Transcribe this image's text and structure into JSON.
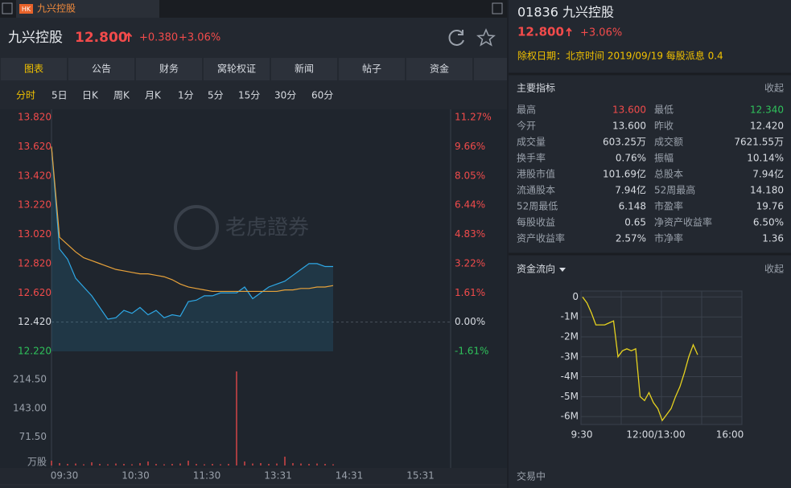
{
  "tab": {
    "badge": "HK",
    "title": "九兴控股"
  },
  "quote": {
    "name": "九兴控股",
    "price": "12.800",
    "change": "+0.380",
    "change_pct": "+3.06%"
  },
  "nav_tabs": [
    "图表",
    "公告",
    "财务",
    "窝轮权证",
    "新闻",
    "帖子",
    "资金"
  ],
  "periods": [
    "分时",
    "5日",
    "日K",
    "周K",
    "月K",
    "1分",
    "5分",
    "15分",
    "30分",
    "60分"
  ],
  "watermark": "老虎證券",
  "chart_data": [
    {
      "type": "line",
      "x_axis_labels": [
        "09:30",
        "10:30",
        "11:30",
        "13:31",
        "14:31",
        "15:31"
      ],
      "ylim": [
        12.22,
        13.82
      ],
      "yticks": [
        {
          "value": 13.82,
          "label": "13.820"
        },
        {
          "value": 13.62,
          "label": "13.620"
        },
        {
          "value": 13.42,
          "label": "13.420"
        },
        {
          "value": 13.22,
          "label": "13.220"
        },
        {
          "value": 13.02,
          "label": "13.020"
        },
        {
          "value": 12.82,
          "label": "12.820"
        },
        {
          "value": 12.62,
          "label": "12.620"
        },
        {
          "value": 12.42,
          "label": "12.420"
        },
        {
          "value": 12.22,
          "label": "12.220"
        }
      ],
      "y2lim": [
        -1.61,
        11.27
      ],
      "y2ticks": [
        {
          "value": 11.27,
          "label": "11.27%"
        },
        {
          "value": 9.66,
          "label": "9.66%"
        },
        {
          "value": 8.05,
          "label": "8.05%"
        },
        {
          "value": 6.44,
          "label": "6.44%"
        },
        {
          "value": 4.83,
          "label": "4.83%"
        },
        {
          "value": 3.22,
          "label": "3.22%"
        },
        {
          "value": 1.61,
          "label": "1.61%"
        },
        {
          "value": 0,
          "label": "0.00%"
        },
        {
          "value": -1.61,
          "label": "-1.61%"
        }
      ],
      "series": [
        {
          "color": "#2ea8e6",
          "values": [
            13.62,
            12.92,
            12.85,
            12.72,
            12.66,
            12.6,
            12.52,
            12.44,
            12.45,
            12.5,
            12.48,
            12.52,
            12.47,
            12.5,
            12.45,
            12.47,
            12.46,
            12.56,
            12.57,
            12.6,
            12.6,
            12.62,
            12.62,
            12.62,
            12.66,
            12.58,
            12.62,
            12.66,
            12.68,
            12.7,
            12.74,
            12.78,
            12.82,
            12.82,
            12.8,
            12.8
          ]
        },
        {
          "color": "#e8a23a",
          "values": [
            13.62,
            13.0,
            12.95,
            12.9,
            12.86,
            12.84,
            12.82,
            12.8,
            12.78,
            12.77,
            12.76,
            12.75,
            12.75,
            12.74,
            12.73,
            12.71,
            12.68,
            12.66,
            12.65,
            12.64,
            12.63,
            12.63,
            12.63,
            12.63,
            12.63,
            12.63,
            12.63,
            12.63,
            12.63,
            12.64,
            12.64,
            12.65,
            12.65,
            12.66,
            12.66,
            12.67
          ]
        }
      ]
    },
    {
      "type": "bar",
      "color": "#e04848",
      "unit_label": "万股",
      "ylim": [
        0,
        235
      ],
      "yticks": [
        {
          "value": 214.5,
          "label": "214.50"
        },
        {
          "value": 143,
          "label": "143.00"
        },
        {
          "value": 71.5,
          "label": "71.50"
        }
      ],
      "values": [
        12,
        6,
        4,
        5,
        3,
        8,
        4,
        3,
        5,
        4,
        3,
        6,
        10,
        4,
        3,
        4,
        5,
        12,
        4,
        3,
        4,
        3,
        4,
        235,
        10,
        5,
        6,
        4,
        5,
        22,
        6,
        5,
        4,
        5,
        4,
        3
      ]
    },
    {
      "type": "line",
      "color": "#e6d21f",
      "x_axis_labels": [
        "9:30",
        "12:00/13:00",
        "16:00"
      ],
      "ylim": [
        -6400000,
        300000
      ],
      "yticks": [
        {
          "value": 0,
          "label": "0"
        },
        {
          "value": -1000000,
          "label": "-1M"
        },
        {
          "value": -2000000,
          "label": "-2M"
        },
        {
          "value": -3000000,
          "label": "-3M"
        },
        {
          "value": -4000000,
          "label": "-4M"
        },
        {
          "value": -5000000,
          "label": "-5M"
        },
        {
          "value": -6000000,
          "label": "-6M"
        }
      ],
      "values": [
        0,
        -300000,
        -800000,
        -1400000,
        -1400000,
        -1400000,
        -1300000,
        -1200000,
        -3000000,
        -2700000,
        -2600000,
        -2700000,
        -2600000,
        -5000000,
        -5200000,
        -4800000,
        -5300000,
        -5600000,
        -6200000,
        -5900000,
        -5600000,
        -5000000,
        -4500000,
        -3800000,
        -3000000,
        -2400000,
        -2900000
      ]
    }
  ],
  "sidebar": {
    "code_name": "01836 九兴控股",
    "price": "12.800",
    "change_pct": "+3.06%",
    "dividend_note": "除权日期：北京时间 2019/09/19 每股派息 0.4",
    "indicators": {
      "title": "主要指标",
      "toggle": "收起",
      "rows": [
        [
          "最高",
          "13.600",
          "最低",
          "12.340"
        ],
        [
          "今开",
          "13.600",
          "昨收",
          "12.420"
        ],
        [
          "成交量",
          "603.25万",
          "成交额",
          "7621.55万"
        ],
        [
          "换手率",
          "0.76%",
          "振幅",
          "10.14%"
        ],
        [
          "港股市值",
          "101.69亿",
          "总股本",
          "7.94亿"
        ],
        [
          "流通股本",
          "7.94亿",
          "52周最高",
          "14.180"
        ],
        [
          "52周最低",
          "6.148",
          "市盈率",
          "19.76"
        ],
        [
          "每股收益",
          "0.65",
          "净资产收益率",
          "6.50%"
        ],
        [
          "资产收益率",
          "2.57%",
          "市净率",
          "1.36"
        ]
      ]
    },
    "fund_flow": {
      "title": "资金流向",
      "toggle": "收起"
    },
    "status": "交易中"
  }
}
